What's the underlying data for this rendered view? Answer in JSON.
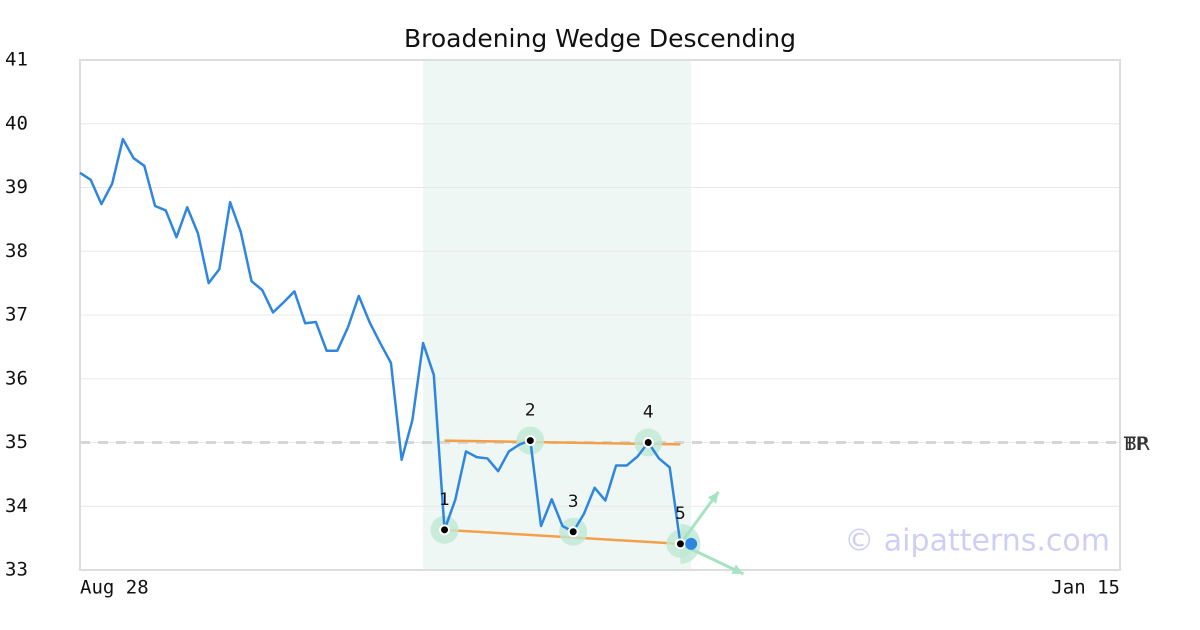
{
  "chart_data": {
    "type": "line",
    "title": "Broadening Wedge Descending",
    "color": "#2f86e0",
    "values": [
      39.23,
      39.12,
      38.74,
      39.06,
      39.76,
      39.46,
      39.34,
      38.71,
      38.64,
      38.22,
      38.69,
      38.28,
      37.5,
      37.72,
      38.77,
      38.3,
      37.53,
      37.39,
      37.04,
      37.2,
      37.37,
      36.87,
      36.89,
      36.44,
      36.44,
      36.81,
      37.3,
      36.89,
      36.56,
      36.25,
      34.73,
      35.35,
      36.56,
      36.06,
      33.63,
      34.1,
      34.86,
      34.77,
      34.75,
      34.55,
      34.86,
      34.97,
      35.03,
      33.69,
      34.11,
      33.69,
      33.6,
      33.88,
      34.29,
      34.09,
      34.64,
      34.64,
      34.78,
      35.0,
      34.75,
      34.61,
      33.41
    ],
    "xlim": [
      0,
      97
    ],
    "xticks": [
      {
        "value": 0,
        "label": "Aug 28"
      },
      {
        "value": 97,
        "label": "Jan 15"
      }
    ],
    "ylim": [
      33,
      41
    ],
    "yticks": [
      33,
      34,
      35,
      36,
      37,
      38,
      39,
      40,
      41
    ],
    "grid": true,
    "pattern": {
      "region": [
        32,
        57
      ],
      "region_color": "#eef7f3",
      "line_color": "#f4a04a",
      "point_color": "#bfe9d3",
      "points": [
        {
          "label": "1",
          "index": 34,
          "value": 33.63
        },
        {
          "label": "2",
          "index": 42,
          "value": 35.03
        },
        {
          "label": "3",
          "index": 46,
          "value": 33.6
        },
        {
          "label": "4",
          "index": 53,
          "value": 35.0
        },
        {
          "label": "5",
          "index": 56,
          "value": 33.41
        }
      ],
      "upper_line": {
        "x": [
          34,
          56
        ],
        "values": [
          35.03,
          34.97
        ]
      },
      "lower_line": {
        "x": [
          34,
          56
        ],
        "values": [
          33.63,
          33.41
        ]
      }
    },
    "breakout": {
      "index": 57,
      "value": 33.41,
      "color": "#2f86e0"
    },
    "levels": [
      {
        "label": "TP",
        "value": 35
      },
      {
        "label": "BR",
        "value": 35
      }
    ],
    "watermark": "© aipatterns.com"
  }
}
